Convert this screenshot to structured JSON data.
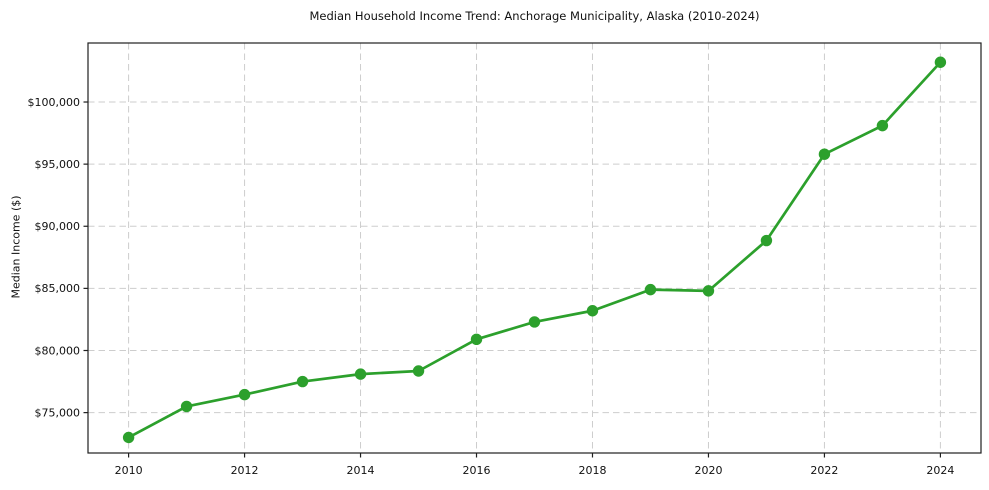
{
  "chart_data": {
    "type": "line",
    "title": "Median Household Income Trend: Anchorage Municipality, Alaska (2010-2024)",
    "xlabel": "",
    "ylabel": "Median Income ($)",
    "series": [
      {
        "name": "Median household income",
        "x": [
          2010,
          2011,
          2012,
          2013,
          2014,
          2015,
          2016,
          2017,
          2018,
          2019,
          2020,
          2021,
          2022,
          2023,
          2024
        ],
        "values": [
          73000,
          75500,
          76450,
          77500,
          78100,
          78350,
          80900,
          82300,
          83200,
          84900,
          84800,
          88850,
          95800,
          98100,
          103200
        ],
        "color": "#2ca02c",
        "marker": "circle"
      }
    ],
    "xlim": [
      2009.3,
      2024.7
    ],
    "ylim": [
      71750,
      104750
    ],
    "x_ticks": {
      "values": [
        2010,
        2012,
        2014,
        2016,
        2018,
        2020,
        2022,
        2024
      ],
      "labels": [
        "2010",
        "2012",
        "2014",
        "2016",
        "2018",
        "2020",
        "2022",
        "2024"
      ]
    },
    "y_ticks": {
      "values": [
        75000,
        80000,
        85000,
        90000,
        95000,
        100000
      ],
      "labels": [
        "$75,000",
        "$80,000",
        "$85,000",
        "$90,000",
        "$95,000",
        "$100,000"
      ]
    },
    "grid": true,
    "grid_style": "dashed",
    "legend": false,
    "colors": {
      "line": "#2ca02c",
      "grid": "#cdcdcd",
      "spine": "#1f1f1f",
      "text": "#111111",
      "background": "#ffffff"
    }
  }
}
